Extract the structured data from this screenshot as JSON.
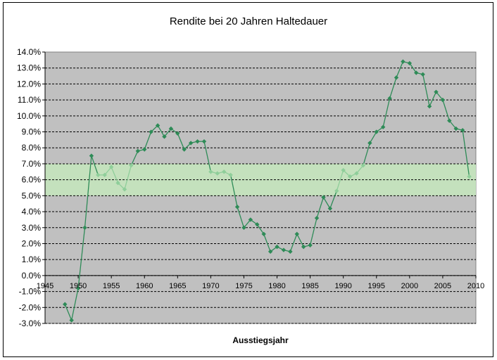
{
  "chart_data": {
    "type": "line",
    "title": "Rendite bei 20 Jahren Haltedauer",
    "xlabel": "Ausstiegsjahr",
    "ylabel": "",
    "xlim": [
      1945,
      2010
    ],
    "ylim": [
      -3.0,
      14.0
    ],
    "x_ticks": [
      "1945",
      "1950",
      "1955",
      "1960",
      "1965",
      "1970",
      "1975",
      "1980",
      "1985",
      "1990",
      "1995",
      "2000",
      "2005",
      "2010"
    ],
    "y_ticks": [
      "-3.0%",
      "-2.0%",
      "-1.0%",
      "0.0%",
      "1.0%",
      "2.0%",
      "3.0%",
      "4.0%",
      "5.0%",
      "6.0%",
      "7.0%",
      "8.0%",
      "9.0%",
      "10.0%",
      "11.0%",
      "12.0%",
      "13.0%",
      "14.0%"
    ],
    "grid": "horizontal dashed",
    "band": {
      "from": 5.0,
      "to": 7.0,
      "color": "#c4e3bd"
    },
    "colors": {
      "plot_bg": "#c0c0c0",
      "in_band": "#8fce9a",
      "out_band": "#2e8b57"
    },
    "series": [
      {
        "x": [
          1948,
          1949,
          1950,
          1951,
          1952,
          1953,
          1954,
          1955,
          1956,
          1957,
          1958,
          1959,
          1960,
          1961,
          1962,
          1963,
          1964,
          1965,
          1966,
          1967,
          1968,
          1969,
          1970,
          1971,
          1972,
          1973,
          1974,
          1975,
          1976,
          1977,
          1978,
          1979,
          1980,
          1981,
          1982,
          1983,
          1984,
          1985,
          1986,
          1987,
          1988,
          1989,
          1990,
          1991,
          1992,
          1993,
          1994,
          1995,
          1996,
          1997,
          1998,
          1999,
          2000,
          2001,
          2002,
          2003,
          2004,
          2005,
          2006,
          2007,
          2008,
          2009
        ],
        "values": [
          -1.8,
          -2.8,
          -0.8,
          3.0,
          7.5,
          6.3,
          6.3,
          6.8,
          5.8,
          5.4,
          6.9,
          7.8,
          7.9,
          9.0,
          9.4,
          8.7,
          9.2,
          8.9,
          7.9,
          8.3,
          8.4,
          8.4,
          6.5,
          6.4,
          6.5,
          6.3,
          4.3,
          3.0,
          3.5,
          3.2,
          2.6,
          1.5,
          1.8,
          1.6,
          1.5,
          2.6,
          1.8,
          1.9,
          3.6,
          4.9,
          4.2,
          5.3,
          6.6,
          6.2,
          6.4,
          6.9,
          8.3,
          9.0,
          9.3,
          11.1,
          12.4,
          13.4,
          13.3,
          12.7,
          12.6,
          10.6,
          11.5,
          11.0,
          9.7,
          9.2,
          9.1,
          6.2
        ]
      }
    ]
  }
}
